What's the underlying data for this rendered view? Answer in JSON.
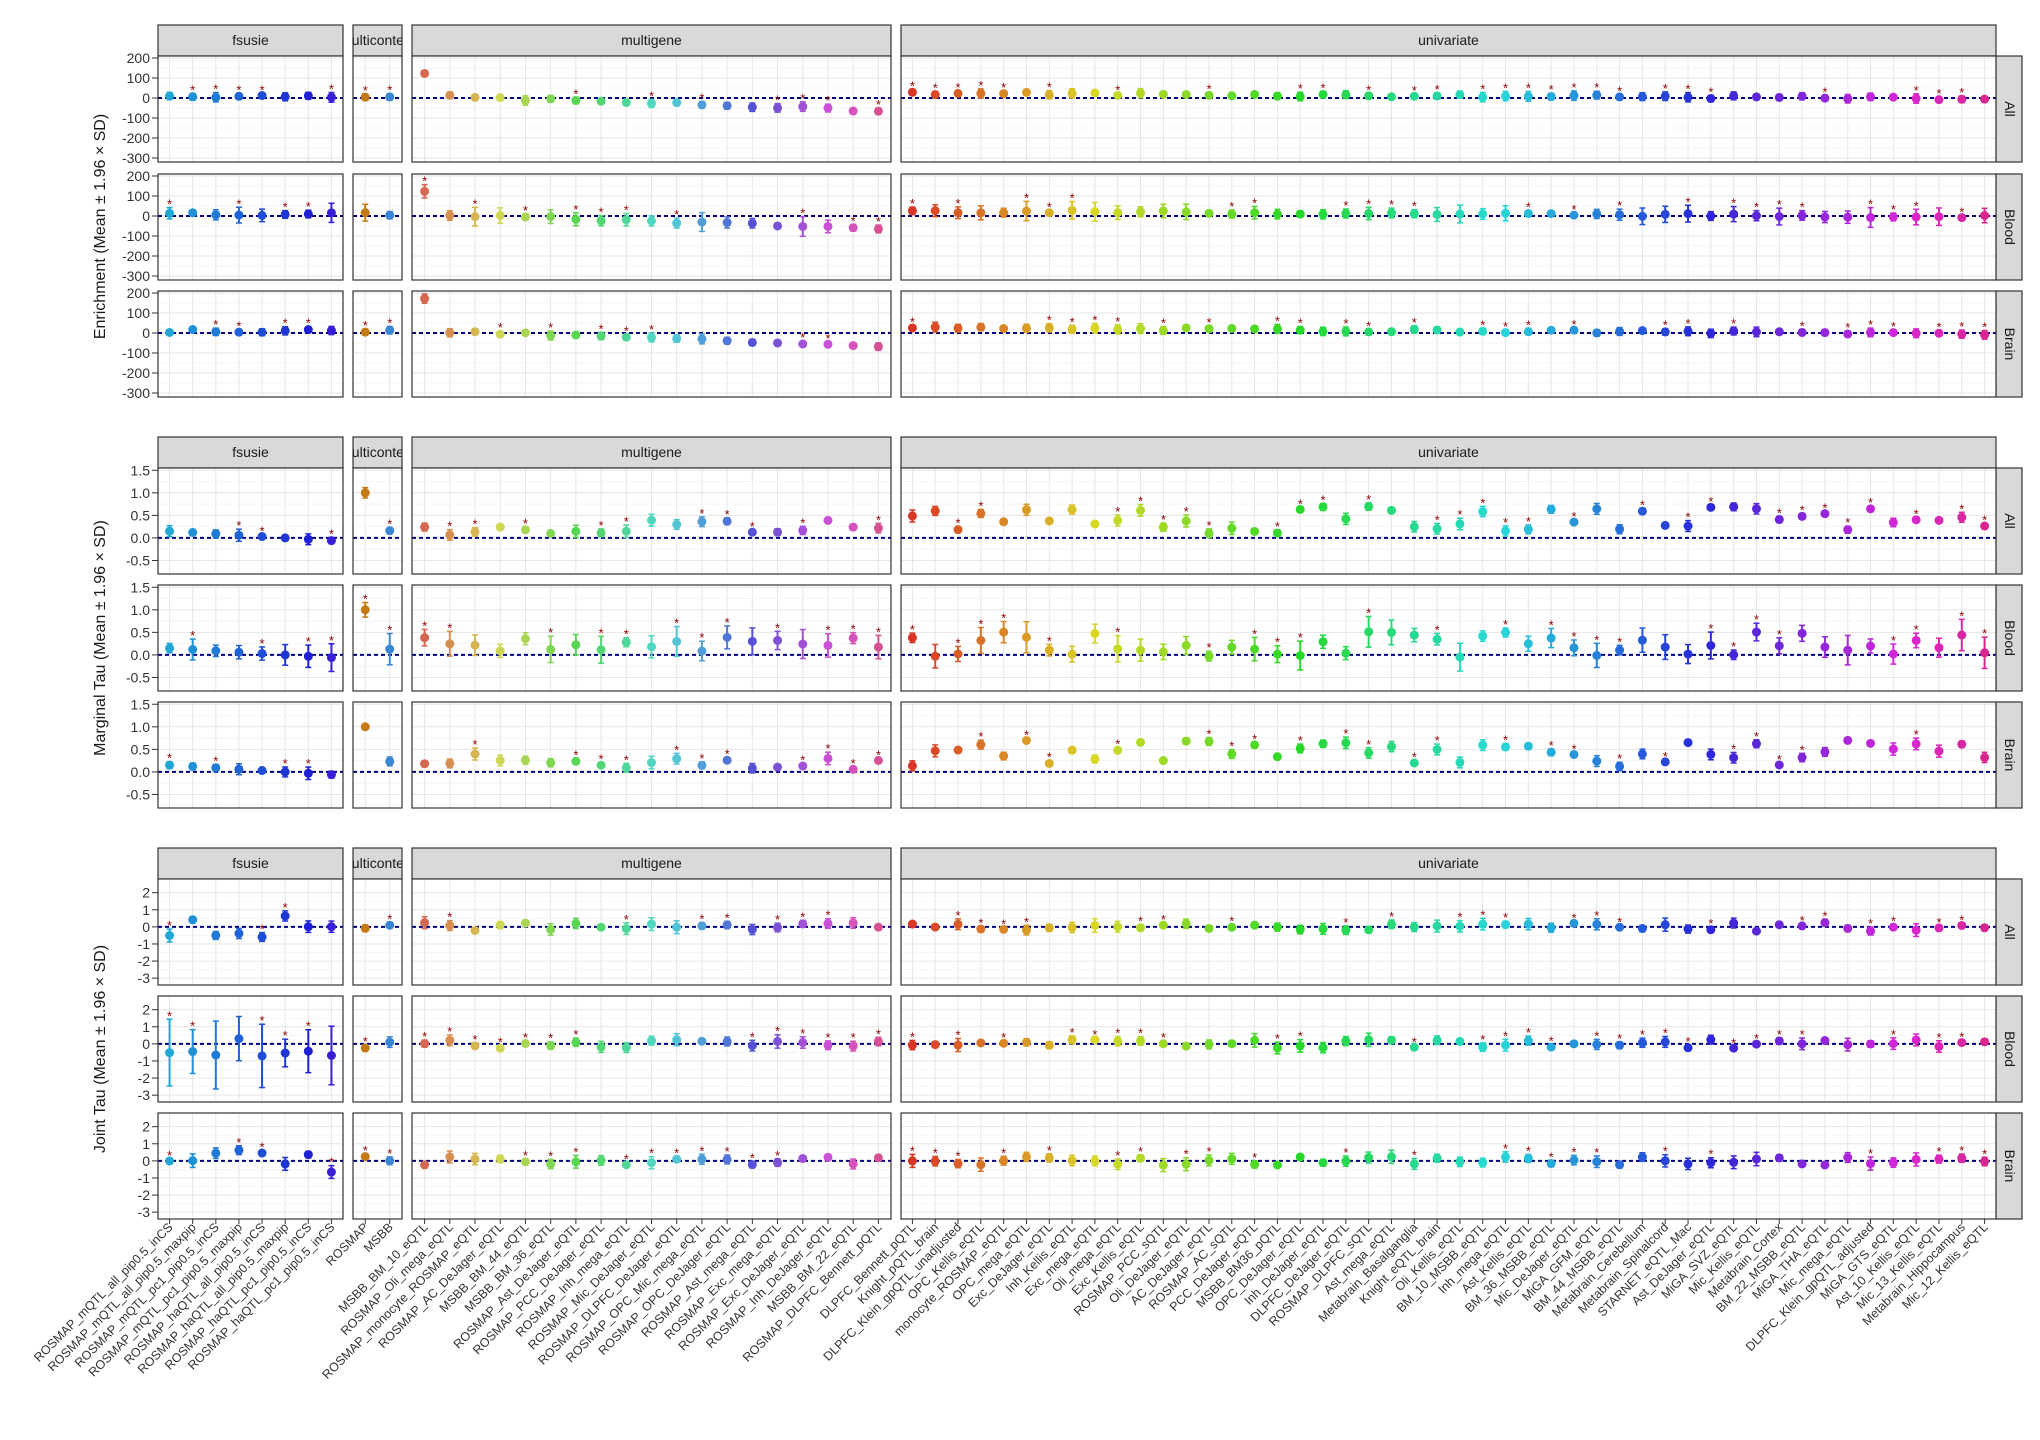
{
  "figure": {
    "colors": {
      "strip_bg": "#d9d9d9",
      "panel_border": "#333333",
      "grid_major": "#e6e6e6",
      "grid_minor": "#f3f3f3",
      "zero_line": "#000080",
      "star": "#8b0000"
    }
  },
  "chart_data": [
    {
      "type": "scatter",
      "ylabel": "Enrichment (Mean ± 1.96 × SD)",
      "yticks": [
        "-300",
        "-200",
        "-100",
        "0",
        "100",
        "200"
      ],
      "ylim": [
        -320,
        210
      ],
      "columns": [
        "fsusie",
        "multicontext",
        "multigene",
        "univariate"
      ],
      "rows": [
        "All",
        "Blood",
        "Brain"
      ]
    },
    {
      "type": "scatter",
      "ylabel": "Marginal Tau (Mean ± 1.96 × SD)",
      "yticks": [
        "-0.5",
        "0.0",
        "0.5",
        "1.0",
        "1.5"
      ],
      "ylim": [
        -0.8,
        1.55
      ],
      "columns": [
        "fsusie",
        "multicontext",
        "multigene",
        "univariate"
      ],
      "rows": [
        "All",
        "Blood",
        "Brain"
      ]
    },
    {
      "type": "scatter",
      "ylabel": "Joint Tau (Mean ± 1.96 × SD)",
      "yticks": [
        "-3",
        "-2",
        "-1",
        "0",
        "1",
        "2"
      ],
      "ylim": [
        -3.4,
        2.8
      ],
      "columns": [
        "fsusie",
        "multicontext",
        "multigene",
        "univariate"
      ],
      "rows": [
        "All",
        "Blood",
        "Brain"
      ]
    }
  ],
  "facet_labels": {
    "fsusie": "fsusie",
    "multicontext": "multicontext",
    "multigene": "multigene",
    "univariate": "univariate"
  },
  "row_labels": {
    "All": "All",
    "Blood": "Blood",
    "Brain": "Brain"
  },
  "categories": {
    "fsusie": [
      "ROSMAP_mQTL_all_pip0.5_inCS",
      "ROSMAP_mQTL_all_pip0.5_maxpip",
      "ROSMAP_mQTL_pc1_pip0.5_inCS",
      "ROSMAP_mQTL_pc1_pip0.5_maxpip",
      "ROSMAP_haQTL_all_pip0.5_inCS",
      "ROSMAP_haQTL_all_pip0.5_maxpip",
      "ROSMAP_haQTL_pc1_pip0.5_inCS",
      "ROSMAP_haQTL_pc1_pip0.5_inCS"
    ],
    "multicontext": [
      "ROSMAP",
      "MSBB"
    ],
    "multigene": [
      "MSBB_BM_10_eQTL",
      "ROSMAP_Oli_mega_eQTL",
      "ROSMAP_monocyte_ROSMAP_eQTL",
      "ROSMAP_AC_DeJager_eQTL",
      "MSBB_BM_44_eQTL",
      "MSBB_BM_36_eQTL",
      "ROSMAP_Ast_DeJager_eQTL",
      "ROSMAP_PCC_DeJager_eQTL",
      "ROSMAP_Inh_mega_eQTL",
      "ROSMAP_Mic_DeJager_eQTL",
      "ROSMAP_DLPFC_DeJager_eQTL",
      "ROSMAP_OPC_Mic_mega_eQTL",
      "ROSMAP_OPC_DeJager_eQTL",
      "ROSMAP_Ast_mega_eQTL",
      "ROSMAP_Exc_mega_eQTL",
      "ROSMAP_Exc_DeJager_eQTL",
      "ROSMAP_Inh_DeJager_eQTL",
      "MSBB_BM_22_eQTL",
      "ROSMAP_DLPFC_Bennett_pQTL"
    ],
    "univariate": [
      "DLPFC_Bennett_pQTL",
      "Knight_pQTL_brain",
      "DLPFC_Klein_gpQTL_unadjusted",
      "OPC_Kellis_eQTL",
      "monocyte_ROSMAP_eQTL",
      "OPC_mega_eQTL",
      "Exc_DeJager_eQTL",
      "Inh_Kellis_eQTL",
      "Exc_mega_eQTL",
      "Oli_mega_eQTL",
      "Exc_Kellis_eQTL",
      "ROSMAP_PCC_sQTL",
      "Oli_DeJager_eQTL",
      "AC_DeJager_eQTL",
      "ROSMAP_AC_sQTL",
      "PCC_DeJager_eQTL",
      "MSBB_BM36_pQTL",
      "OPC_DeJager_eQTL",
      "Inh_DeJager_eQTL",
      "DLPFC_DeJager_eQTL",
      "ROSMAP_DLPFC_sQTL",
      "Ast_mega_eQTL",
      "Metabrain_Basalganglia",
      "Knight_eQTL_brain",
      "Oli_Kellis_eQTL",
      "BM_10_MSBB_eQTL",
      "Inh_mega_eQTL",
      "Ast_Kellis_eQTL",
      "BM_36_MSBB_eQTL",
      "Mic_DeJager_eQTL",
      "MiGA_GFM_eQTL",
      "BM_44_MSBB_eQTL",
      "Metabrain_Cerebellum",
      "Metabrain_Spinalcord",
      "STARNET_eQTL_Mac",
      "Ast_DeJager_eQTL",
      "MiGA_SVZ_eQTL",
      "Mic_Kellis_eQTL",
      "Metabrain_Cortex",
      "BM_22_MSBB_eQTL",
      "MiGA_THA_eQTL",
      "Mic_mega_eQTL",
      "DLPFC_Klein_gpQTL_adjusted",
      "MiGA_GTS_eQTL",
      "Ast_10_Kellis_eQTL",
      "Mic_13_Kellis_eQTL",
      "Metabrain_Hippocampus",
      "Mic_12_Kellis_eQTL"
    ]
  }
}
